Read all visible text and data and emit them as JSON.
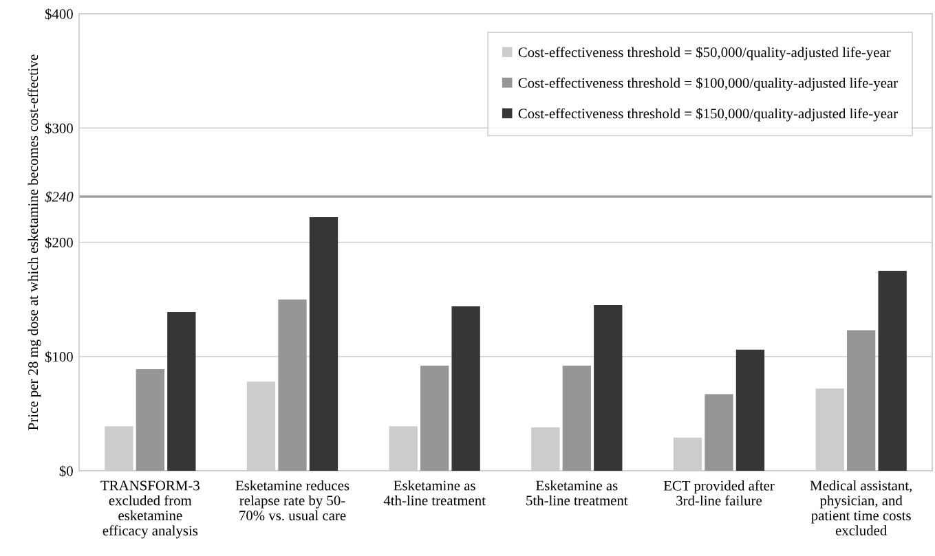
{
  "chart_data": {
    "type": "bar",
    "ylabel": "Price per 28 mg dose at which esketamine becomes cost-effective",
    "categories": [
      "TRANSFORM-3\nexcluded from\nesketamine\nefficacy analysis",
      "Esketamine reduces\nrelapse rate by 50-\n70% vs. usual care",
      "Esketamine as\n4th-line treatment",
      "Esketamine as\n5th-line treatment",
      "ECT provided after\n3rd-line failure",
      "Medical assistant,\nphysician, and\npatient time costs\nexcluded"
    ],
    "series": [
      {
        "name": "Cost-effectiveness threshold = $50,000/quality-adjusted life-year",
        "color": "#cccccc",
        "values": [
          39,
          78,
          39,
          38,
          29,
          72
        ]
      },
      {
        "name": "Cost-effectiveness threshold = $100,000/quality-adjusted life-year",
        "color": "#969696",
        "values": [
          89,
          150,
          92,
          92,
          67,
          123
        ]
      },
      {
        "name": "Cost-effectiveness threshold = $150,000/quality-adjusted life-year",
        "color": "#363636",
        "values": [
          139,
          222,
          144,
          145,
          106,
          175
        ]
      }
    ],
    "ylim": [
      0,
      400
    ],
    "yticks": [
      {
        "value": 0,
        "label": "$0"
      },
      {
        "value": 100,
        "label": "$100"
      },
      {
        "value": 200,
        "label": "$200"
      },
      {
        "value": 240,
        "label": "$240"
      },
      {
        "value": 300,
        "label": "$300"
      },
      {
        "value": 400,
        "label": "$400"
      }
    ],
    "ref_lines": [
      {
        "axis": "y",
        "value": 240,
        "label": null,
        "color": "#a0a0a0",
        "line_style": "solid"
      }
    ],
    "grid": "y",
    "legend": "top right"
  }
}
